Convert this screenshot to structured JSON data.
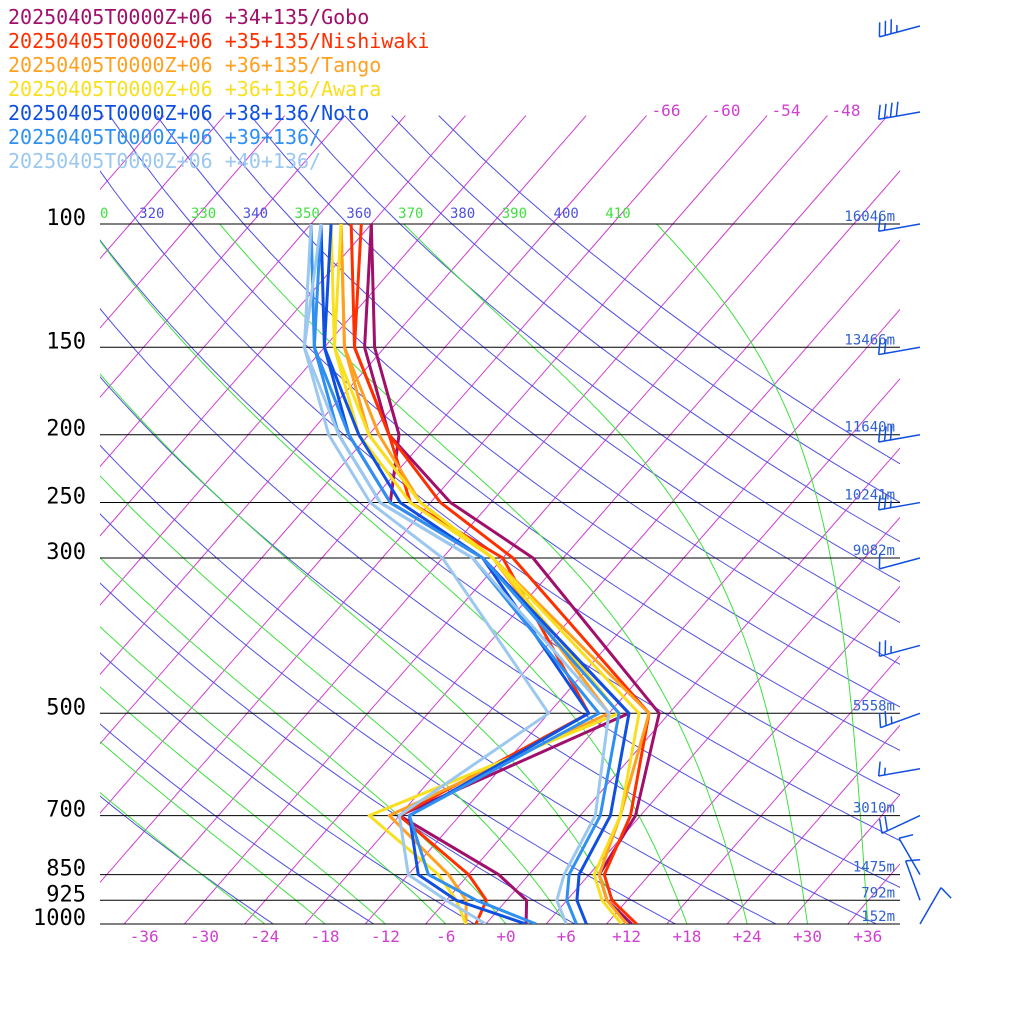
{
  "chart_data": {
    "type": "line",
    "subtype": "skew-T log-p sounding",
    "pressure_levels": [
      100,
      150,
      200,
      250,
      300,
      500,
      700,
      850,
      925,
      1000
    ],
    "heights": [
      {
        "p": 100,
        "label": "16046m"
      },
      {
        "p": 150,
        "label": "13466m"
      },
      {
        "p": 200,
        "label": "11640m"
      },
      {
        "p": 250,
        "label": "10241m"
      },
      {
        "p": 300,
        "label": "9082m"
      },
      {
        "p": 500,
        "label": "5558m"
      },
      {
        "p": 700,
        "label": "3010m"
      },
      {
        "p": 850,
        "label": "1475m"
      },
      {
        "p": 925,
        "label": "792m"
      },
      {
        "p": 1000,
        "label": "152m"
      }
    ],
    "temperature_ticks": [
      "-36",
      "-30",
      "-24",
      "-18",
      "-12",
      "-6",
      "+0",
      "+6",
      "+12",
      "+18",
      "+24",
      "+30",
      "+36"
    ],
    "temperature_tick_values": [
      -36,
      -30,
      -24,
      -18,
      -12,
      -6,
      0,
      6,
      12,
      18,
      24,
      30,
      36
    ],
    "theta_labels": [
      "0",
      "320",
      "330",
      "340",
      "350",
      "360",
      "370",
      "380",
      "390",
      "400",
      "410"
    ],
    "top_temperature_labels": [
      "-66",
      "-60",
      "-54",
      "-48"
    ],
    "colors": {
      "isobar": "#000000",
      "isotherm": "#d040d0",
      "dry_adiabat": "#5050e0",
      "moist_adiabat": "#40e040",
      "height_label": "#3060d0"
    },
    "legend_placement": "top-left",
    "series": [
      {
        "name": "20250405T0000Z+06 +34+135/Gobo",
        "color": "#a0106a",
        "temperature": [
          [
            1000,
            12.5
          ],
          [
            925,
            8
          ],
          [
            850,
            5
          ],
          [
            700,
            3.5
          ],
          [
            500,
            -3
          ],
          [
            300,
            -29
          ],
          [
            250,
            -42
          ],
          [
            200,
            -54
          ],
          [
            150,
            -64
          ],
          [
            100,
            -74
          ]
        ],
        "dewpoint": [
          [
            1000,
            2
          ],
          [
            925,
            0
          ],
          [
            850,
            -5
          ],
          [
            700,
            -20
          ],
          [
            500,
            -6
          ],
          [
            300,
            -34
          ],
          [
            250,
            -48
          ],
          [
            200,
            -53
          ],
          [
            150,
            -63
          ],
          [
            100,
            -74
          ]
        ]
      },
      {
        "name": "20250405T0000Z+06 +35+135/Nishiwaki",
        "color": "#ff3000",
        "temperature": [
          [
            1000,
            13
          ],
          [
            925,
            8.5
          ],
          [
            850,
            5.5
          ],
          [
            700,
            3
          ],
          [
            500,
            -4
          ],
          [
            300,
            -31
          ],
          [
            250,
            -43
          ],
          [
            200,
            -54
          ],
          [
            150,
            -65
          ],
          [
            100,
            -75
          ]
        ],
        "dewpoint": [
          [
            1000,
            -3
          ],
          [
            925,
            -4
          ],
          [
            850,
            -8
          ],
          [
            700,
            -20
          ],
          [
            500,
            -10
          ],
          [
            300,
            -32
          ],
          [
            250,
            -46
          ],
          [
            200,
            -54
          ],
          [
            150,
            -65
          ],
          [
            100,
            -76
          ]
        ]
      },
      {
        "name": "20250405T0000Z+06 +36+135/Tango",
        "color": "#ffa020",
        "temperature": [
          [
            1000,
            12
          ],
          [
            925,
            8
          ],
          [
            850,
            5
          ],
          [
            700,
            2
          ],
          [
            500,
            -4
          ],
          [
            300,
            -33
          ],
          [
            250,
            -45
          ],
          [
            200,
            -55
          ],
          [
            150,
            -66
          ],
          [
            100,
            -77
          ]
        ],
        "dewpoint": [
          [
            1000,
            -4
          ],
          [
            925,
            -6
          ],
          [
            850,
            -10
          ],
          [
            700,
            -21
          ],
          [
            500,
            -8
          ],
          [
            300,
            -33
          ],
          [
            250,
            -45
          ],
          [
            200,
            -56
          ],
          [
            150,
            -66
          ],
          [
            100,
            -77
          ]
        ]
      },
      {
        "name": "20250405T0000Z+06 +36+136/Awara",
        "color": "#f8e020",
        "temperature": [
          [
            1000,
            11.5
          ],
          [
            925,
            7.5
          ],
          [
            850,
            4.5
          ],
          [
            700,
            2
          ],
          [
            500,
            -5
          ],
          [
            300,
            -33
          ],
          [
            250,
            -45
          ],
          [
            200,
            -56
          ],
          [
            150,
            -67
          ],
          [
            100,
            -77
          ]
        ],
        "dewpoint": [
          [
            1000,
            -4
          ],
          [
            925,
            -7
          ],
          [
            850,
            -11
          ],
          [
            700,
            -23
          ],
          [
            500,
            -7
          ],
          [
            300,
            -33
          ],
          [
            250,
            -46
          ],
          [
            200,
            -57
          ],
          [
            150,
            -67
          ],
          [
            100,
            -78
          ]
        ]
      },
      {
        "name": "20250405T0000Z+06 +38+136/Noto",
        "color": "#1050e0",
        "temperature": [
          [
            1000,
            8
          ],
          [
            925,
            5
          ],
          [
            850,
            3
          ],
          [
            700,
            1
          ],
          [
            500,
            -6
          ],
          [
            300,
            -34
          ],
          [
            250,
            -47
          ],
          [
            200,
            -57
          ],
          [
            150,
            -68
          ],
          [
            100,
            -78
          ]
        ],
        "dewpoint": [
          [
            1000,
            2
          ],
          [
            925,
            -7
          ],
          [
            850,
            -13
          ],
          [
            700,
            -19
          ],
          [
            500,
            -10
          ],
          [
            300,
            -34
          ],
          [
            250,
            -48
          ],
          [
            200,
            -58
          ],
          [
            150,
            -68
          ],
          [
            100,
            -79
          ]
        ]
      },
      {
        "name": "20250405T0000Z+06 +39+136/",
        "color": "#3090f0",
        "temperature": [
          [
            1000,
            7
          ],
          [
            925,
            4
          ],
          [
            850,
            2
          ],
          [
            700,
            0
          ],
          [
            500,
            -7
          ],
          [
            300,
            -34
          ],
          [
            250,
            -48
          ],
          [
            200,
            -58
          ],
          [
            150,
            -69
          ],
          [
            100,
            -79
          ]
        ],
        "dewpoint": [
          [
            1000,
            3
          ],
          [
            925,
            -5
          ],
          [
            850,
            -12
          ],
          [
            700,
            -19
          ],
          [
            500,
            -9
          ],
          [
            300,
            -35
          ],
          [
            250,
            -49
          ],
          [
            200,
            -59
          ],
          [
            150,
            -69
          ],
          [
            100,
            -80
          ]
        ]
      },
      {
        "name": "20250405T0000Z+06 +40+136/",
        "color": "#9cc8f0",
        "temperature": [
          [
            1000,
            6
          ],
          [
            925,
            3
          ],
          [
            850,
            1.5
          ],
          [
            700,
            -0.5
          ],
          [
            500,
            -8
          ],
          [
            300,
            -35
          ],
          [
            250,
            -49
          ],
          [
            200,
            -59
          ],
          [
            150,
            -70
          ],
          [
            100,
            -79
          ]
        ],
        "dewpoint": [
          [
            1000,
            -2
          ],
          [
            925,
            -8
          ],
          [
            850,
            -14
          ],
          [
            700,
            -20
          ],
          [
            500,
            -14
          ],
          [
            300,
            -38
          ],
          [
            250,
            -50
          ],
          [
            200,
            -60
          ],
          [
            150,
            -70
          ],
          [
            100,
            -80
          ]
        ]
      }
    ],
    "wind_barbs": [
      {
        "p": 70,
        "speed_kt": 35,
        "dir": 255
      },
      {
        "p": 85,
        "speed_kt": 40,
        "dir": 260
      },
      {
        "p": 100,
        "speed_kt": 15,
        "dir": 260
      },
      {
        "p": 150,
        "speed_kt": 20,
        "dir": 260
      },
      {
        "p": 200,
        "speed_kt": 30,
        "dir": 260
      },
      {
        "p": 250,
        "speed_kt": 25,
        "dir": 260
      },
      {
        "p": 300,
        "speed_kt": 10,
        "dir": 255
      },
      {
        "p": 400,
        "speed_kt": 25,
        "dir": 255
      },
      {
        "p": 500,
        "speed_kt": 25,
        "dir": 250
      },
      {
        "p": 600,
        "speed_kt": 15,
        "dir": 260
      },
      {
        "p": 700,
        "speed_kt": 20,
        "dir": 245
      },
      {
        "p": 850,
        "speed_kt": 10,
        "dir": 330
      },
      {
        "p": 925,
        "speed_kt": 10,
        "dir": 340
      },
      {
        "p": 1000,
        "speed_kt": 10,
        "dir": 30
      }
    ]
  }
}
